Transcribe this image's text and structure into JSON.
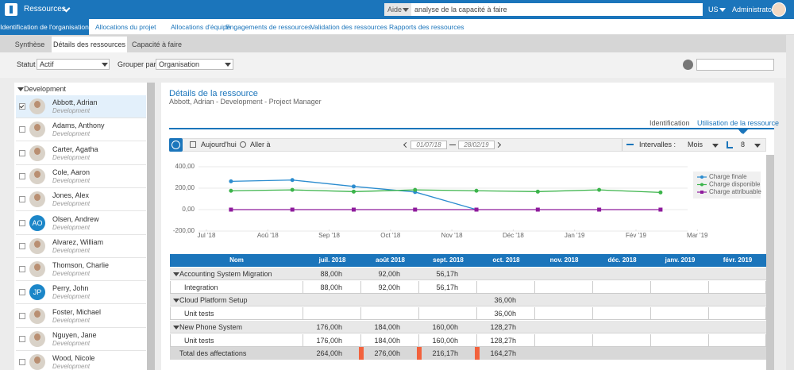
{
  "header": {
    "app": "Ressources",
    "help": "Aide",
    "search": "analyse de la capacité à faire",
    "locale": "US",
    "user": "Administrator"
  },
  "nav": {
    "items": [
      "Identification de l'organisation",
      "Allocations du projet",
      "Allocations d'équipe",
      "Engagements de ressources",
      "Validation des ressources",
      "Rapports des ressources"
    ],
    "active": 0
  },
  "subtabs": {
    "items": [
      "Synthèse",
      "Détails des ressources",
      "Capacité à faire"
    ],
    "active": 1
  },
  "filters": {
    "status_label": "Statut :",
    "status": "Actif",
    "group_label": "Grouper par :",
    "group": "Organisation"
  },
  "list": {
    "group": "Development",
    "people": [
      {
        "name": "Abbott, Adrian",
        "unit": "Development",
        "checked": true
      },
      {
        "name": "Adams, Anthony",
        "unit": "Development"
      },
      {
        "name": "Carter, Agatha",
        "unit": "Development"
      },
      {
        "name": "Cole, Aaron",
        "unit": "Development"
      },
      {
        "name": "Jones, Alex",
        "unit": "Development"
      },
      {
        "name": "Olsen, Andrew",
        "unit": "Development",
        "initials": "AO"
      },
      {
        "name": "Alvarez, William",
        "unit": "Development"
      },
      {
        "name": "Thomson, Charlie",
        "unit": "Development"
      },
      {
        "name": "Perry, John",
        "unit": "Development",
        "initials": "JP"
      },
      {
        "name": "Foster, Michael",
        "unit": "Development"
      },
      {
        "name": "Nguyen, Jane",
        "unit": "Development"
      },
      {
        "name": "Wood, Nicole",
        "unit": "Development"
      }
    ]
  },
  "details": {
    "title": "Détails de la ressource",
    "subtitle": "Abbott, Adrian - Development - Project Manager",
    "tabs": [
      "Identification",
      "Utilisation de la ressource"
    ],
    "active": 1
  },
  "toolbar": {
    "today": "Aujourd'hui",
    "goto": "Aller à",
    "from": "01/07/18",
    "to": "28/02/19",
    "interval_label": "Intervalles :",
    "interval": "Mois",
    "count": "8"
  },
  "chart_data": {
    "type": "line",
    "x": [
      0.4,
      1.4,
      2.4,
      3.4,
      4.4,
      5.4,
      6.4,
      7.4
    ],
    "xlim": [
      -0.6,
      8.1
    ],
    "xticks": [
      {
        "value": 0,
        "label": "Jul '18"
      },
      {
        "value": 1,
        "label": "Aoû '18"
      },
      {
        "value": 2,
        "label": "Sep '18"
      },
      {
        "value": 3,
        "label": "Oct '18"
      },
      {
        "value": 4,
        "label": "Nov '18"
      },
      {
        "value": 5,
        "label": "Déc '18"
      },
      {
        "value": 6,
        "label": "Jan '19"
      },
      {
        "value": 7,
        "label": "Fév '19"
      },
      {
        "value": 8,
        "label": "Mar '19"
      }
    ],
    "ylim": [
      -200,
      400
    ],
    "yticks": [
      {
        "value": -200,
        "label": "-200,00"
      },
      {
        "value": 0,
        "label": "0,00"
      },
      {
        "value": 200,
        "label": "200,00"
      },
      {
        "value": 400,
        "label": "400,00"
      }
    ],
    "grid": true,
    "legend": "right",
    "series": [
      {
        "name": "Charge finale",
        "color": "#2b8ccf",
        "marker": "circle",
        "values": [
          264,
          276,
          216.17,
          164.27,
          0,
          null,
          null,
          null
        ]
      },
      {
        "name": "Charge disponible",
        "color": "#3cb44b",
        "marker": "circle",
        "values": [
          176,
          184,
          168,
          184,
          176,
          168,
          184,
          160
        ]
      },
      {
        "name": "Charge attribuable",
        "color": "#8e1b9c",
        "marker": "square",
        "values": [
          0,
          0,
          0,
          0,
          0,
          0,
          0,
          0
        ]
      }
    ]
  },
  "table": {
    "columns": [
      "Nom",
      "juil. 2018",
      "août 2018",
      "sept. 2018",
      "oct. 2018",
      "nov. 2018",
      "déc. 2018",
      "janv. 2019",
      "févr. 2019"
    ],
    "groups": [
      {
        "name": "Accounting System Migration",
        "values": [
          "88,00h",
          "92,00h",
          "56,17h",
          null,
          null,
          null,
          null,
          null
        ],
        "tasks": [
          {
            "name": "Integration",
            "values": [
              "88,00h",
              "92,00h",
              "56,17h",
              null,
              null,
              null,
              null,
              null
            ]
          }
        ]
      },
      {
        "name": "Cloud Platform Setup",
        "values": [
          null,
          null,
          null,
          "36,00h",
          null,
          null,
          null,
          null
        ],
        "tasks": [
          {
            "name": "Unit tests",
            "values": [
              null,
              null,
              null,
              "36,00h",
              null,
              null,
              null,
              null
            ]
          }
        ]
      },
      {
        "name": "New Phone System",
        "values": [
          "176,00h",
          "184,00h",
          "160,00h",
          "128,27h",
          null,
          null,
          null,
          null
        ],
        "tasks": [
          {
            "name": "Unit tests",
            "values": [
              "176,00h",
              "184,00h",
              "160,00h",
              "128,27h",
              null,
              null,
              null,
              null
            ]
          }
        ]
      }
    ],
    "total": {
      "name": "Total des affectations",
      "values": [
        "264,00h",
        "276,00h",
        "216,17h",
        "164,27h",
        null,
        null,
        null,
        null
      ]
    }
  }
}
